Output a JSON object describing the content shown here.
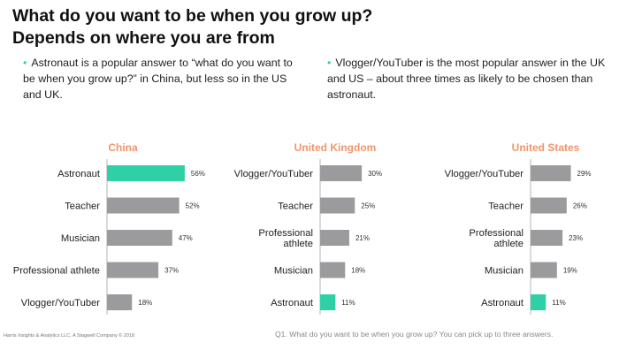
{
  "title": "What do you want to be when you grow up? Depends on where you are from",
  "bullets": [
    "Astronaut is a popular answer to “what do you want to be when you grow up?” in China, but less so in the US and UK.",
    "Vlogger/YouTuber is the most popular answer in the UK and US – about three times as likely to be chosen than astronaut."
  ],
  "colors": {
    "bar": "#9b9b9e",
    "highlight": "#2fd0a6",
    "panel_title": "#f0956a",
    "accent": "#2fd0a6"
  },
  "chart_data": [
    {
      "type": "bar",
      "title": "China",
      "categories": [
        "Astronaut",
        "Teacher",
        "Musician",
        "Professional athlete",
        "Vlogger/YouTuber"
      ],
      "values": [
        56,
        52,
        47,
        37,
        18
      ],
      "labels": [
        "56%",
        "52%",
        "47%",
        "37%",
        "18%"
      ],
      "highlight": "Astronaut",
      "xlim": [
        0,
        100
      ]
    },
    {
      "type": "bar",
      "title": "United Kingdom",
      "categories": [
        "Vlogger/YouTuber",
        "Teacher",
        "Professional athlete",
        "Musician",
        "Astronaut"
      ],
      "values": [
        30,
        25,
        21,
        18,
        11
      ],
      "labels": [
        "30%",
        "25%",
        "21%",
        "18%",
        "11%"
      ],
      "highlight": "Astronaut",
      "xlim": [
        0,
        100
      ]
    },
    {
      "type": "bar",
      "title": "United States",
      "categories": [
        "Vlogger/YouTuber",
        "Teacher",
        "Professional athlete",
        "Musician",
        "Astronaut"
      ],
      "values": [
        29,
        26,
        23,
        19,
        11
      ],
      "labels": [
        "29%",
        "26%",
        "23%",
        "19%",
        "11%"
      ],
      "highlight": "Astronaut",
      "xlim": [
        0,
        100
      ]
    }
  ],
  "footer": {
    "copyright": "Harris Insights & Analytics LLC, A Stagwell Company © 2018",
    "question_note": "Q1. What do you want to be when you grow up? You can pick up to three answers."
  }
}
